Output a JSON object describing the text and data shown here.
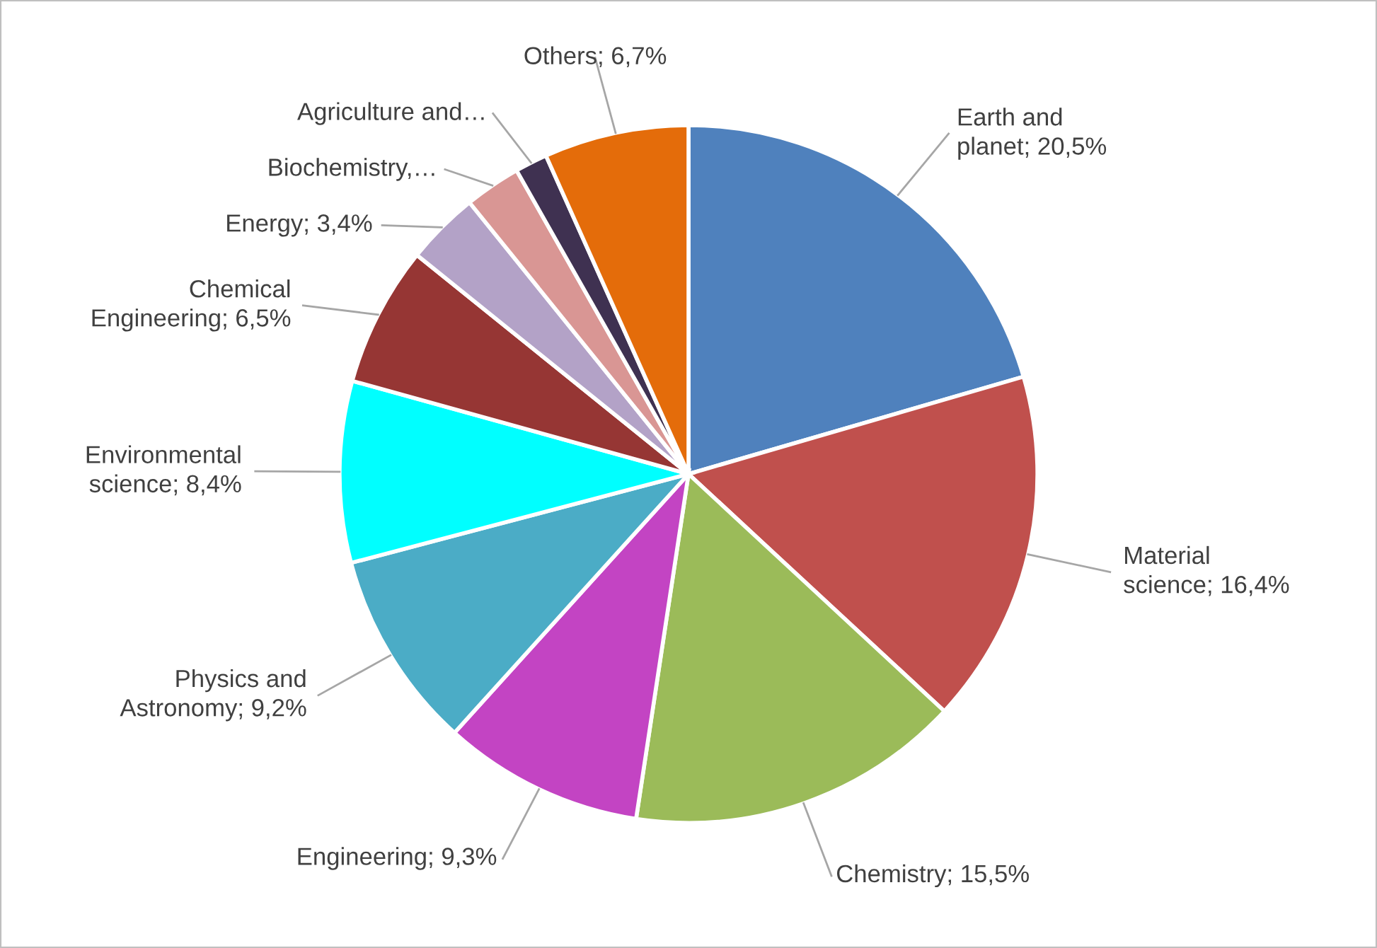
{
  "chart_data": {
    "type": "pie",
    "categories": [
      "Earth and planet",
      "Material science",
      "Chemistry",
      "Engineering",
      "Physics and Astronomy",
      "Environmental science",
      "Chemical Engineering",
      "Energy",
      "Biochemistry,…",
      "Agriculture and…",
      "Others"
    ],
    "values": [
      20.5,
      16.4,
      15.5,
      9.3,
      9.2,
      8.4,
      6.5,
      3.4,
      2.6,
      1.5,
      6.7
    ],
    "value_labels": [
      "20,5%",
      "16,4%",
      "15,5%",
      "9,3%",
      "9,2%",
      "8,4%",
      "6,5%",
      "3,4%",
      null,
      null,
      "6,7%"
    ],
    "colors": [
      "#4f81bd",
      "#c0504d",
      "#9bbb59",
      "#c344c3",
      "#4bacc6",
      "#00ffff",
      "#963634",
      "#b3a2c7",
      "#d99694",
      "#3f3151",
      "#e46c0a"
    ],
    "legend": false
  }
}
